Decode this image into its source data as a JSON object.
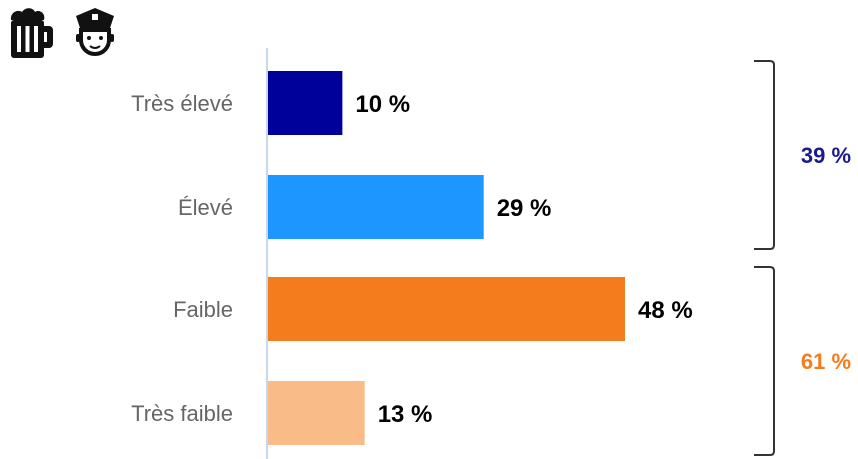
{
  "icons": {
    "left": "beer-mug-icon",
    "right": "police-officer-icon"
  },
  "chart_data": {
    "type": "bar",
    "orientation": "horizontal",
    "categories": [
      "Très élevé",
      "Élevé",
      "Faible",
      "Très faible"
    ],
    "values": [
      10,
      29,
      48,
      13
    ],
    "value_labels": [
      "10 %",
      "29 %",
      "48 %",
      "13 %"
    ],
    "colors": [
      "#00009b",
      "#1e96ff",
      "#f47c1c",
      "#f9bb88"
    ],
    "xlim": [
      0,
      60
    ],
    "grid": false,
    "groups": [
      {
        "label": "39 %",
        "color": "#1a1a8e",
        "from": 0,
        "to": 1
      },
      {
        "label": "61 %",
        "color": "#f47c1c",
        "from": 2,
        "to": 3
      }
    ]
  }
}
